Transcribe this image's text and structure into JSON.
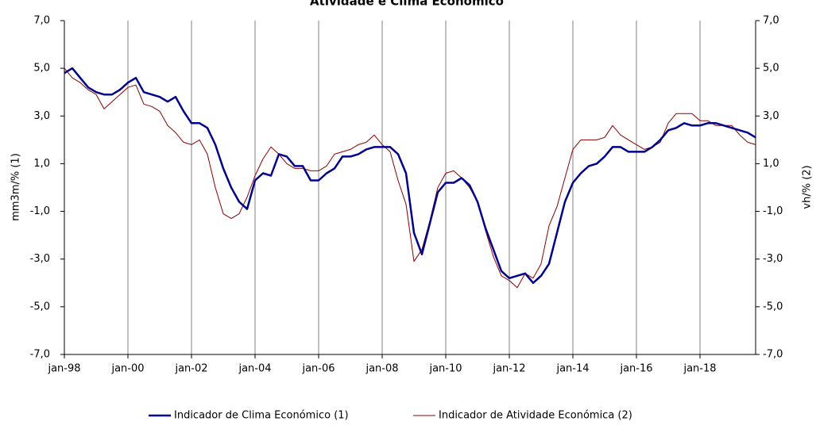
{
  "chart_data": {
    "type": "line",
    "title": "Atividade e Clima Económico",
    "y_label": "mm3m/% (1)",
    "y2_label": "vh/% (2)",
    "categories": [
      "jan-98",
      null,
      null,
      null,
      null,
      null,
      null,
      null,
      "jan-00",
      null,
      null,
      null,
      null,
      null,
      null,
      null,
      "jan-02",
      null,
      null,
      null,
      null,
      null,
      null,
      null,
      "jan-04",
      null,
      null,
      null,
      null,
      null,
      null,
      null,
      "jan-06",
      null,
      null,
      null,
      null,
      null,
      null,
      null,
      "jan-08",
      null,
      null,
      null,
      null,
      null,
      null,
      null,
      "jan-10",
      null,
      null,
      null,
      null,
      null,
      null,
      null,
      "jan-12",
      null,
      null,
      null,
      null,
      null,
      null,
      null,
      "jan-14",
      null,
      null,
      null,
      null,
      null,
      null,
      null,
      "jan-16",
      null,
      null,
      null,
      null,
      null,
      null,
      null,
      "jan-18",
      null,
      null,
      null,
      null,
      null,
      null,
      null
    ],
    "series": [
      {
        "name": "Indicador de Clima Económico (1)",
        "color": "#00008b",
        "width": 2.5,
        "values": [
          4.8,
          5.0,
          4.6,
          4.2,
          4.0,
          3.9,
          3.9,
          4.1,
          4.4,
          4.6,
          4.0,
          3.9,
          3.8,
          3.6,
          3.8,
          3.2,
          2.7,
          2.7,
          2.5,
          1.8,
          0.8,
          0.0,
          -0.6,
          -0.9,
          0.3,
          0.6,
          0.5,
          1.4,
          1.3,
          0.9,
          0.9,
          0.3,
          0.3,
          0.6,
          0.8,
          1.3,
          1.3,
          1.4,
          1.6,
          1.7,
          1.7,
          1.7,
          1.4,
          0.6,
          -1.9,
          -2.8,
          -1.5,
          -0.2,
          0.2,
          0.2,
          0.4,
          0.1,
          -0.6,
          -1.7,
          -2.6,
          -3.5,
          -3.8,
          -3.7,
          -3.6,
          -4.0,
          -3.7,
          -3.2,
          -1.9,
          -0.6,
          0.2,
          0.6,
          0.9,
          1.0,
          1.3,
          1.7,
          1.7,
          1.5,
          1.5,
          1.5,
          1.7,
          2.0,
          2.4,
          2.5,
          2.7,
          2.6,
          2.6,
          2.7,
          2.7,
          2.6,
          2.5,
          2.4,
          2.3,
          2.1
        ]
      },
      {
        "name": "Indicador de Atividade Económica (2)",
        "color": "#8b0000",
        "width": 1,
        "axis": "y2",
        "values": [
          5.0,
          4.6,
          4.4,
          4.1,
          3.9,
          3.3,
          3.6,
          3.9,
          4.2,
          4.3,
          3.5,
          3.4,
          3.2,
          2.6,
          2.3,
          1.9,
          1.8,
          2.0,
          1.4,
          0.0,
          -1.1,
          -1.3,
          -1.1,
          -0.4,
          0.5,
          1.2,
          1.7,
          1.4,
          1.0,
          0.8,
          0.8,
          0.7,
          0.7,
          0.9,
          1.4,
          1.5,
          1.6,
          1.8,
          1.9,
          2.2,
          1.8,
          1.5,
          0.3,
          -0.7,
          -3.1,
          -2.6,
          -1.4,
          0.0,
          0.6,
          0.7,
          0.4,
          0.0,
          -0.6,
          -1.8,
          -2.9,
          -3.7,
          -3.9,
          -4.2,
          -3.6,
          -3.8,
          -3.2,
          -1.6,
          -0.8,
          0.4,
          1.6,
          2.0,
          2.0,
          2.0,
          2.1,
          2.6,
          2.2,
          2.0,
          1.8,
          1.6,
          1.7,
          1.9,
          2.7,
          3.1,
          3.1,
          3.1,
          2.8,
          2.8,
          2.6,
          2.6,
          2.6,
          2.2,
          1.9,
          1.8
        ]
      }
    ],
    "ylim": [
      -7,
      7
    ],
    "yticks": [
      {
        "value": 7,
        "label": "7,0"
      },
      {
        "value": 5,
        "label": "5,0"
      },
      {
        "value": 3,
        "label": "3,0"
      },
      {
        "value": 1,
        "label": "1,0"
      },
      {
        "value": -1,
        "label": "-1,0"
      },
      {
        "value": -3,
        "label": "-3,0"
      },
      {
        "value": -5,
        "label": "-5,0"
      },
      {
        "value": -7,
        "label": "-7,0"
      }
    ],
    "y2lim": [
      -7,
      7
    ],
    "y2ticks": [
      {
        "value": 7,
        "label": "7,0"
      },
      {
        "value": 5,
        "label": "5,0"
      },
      {
        "value": 3,
        "label": "3,0"
      },
      {
        "value": 1,
        "label": "1,0"
      },
      {
        "value": -1,
        "label": "-1,0"
      },
      {
        "value": -3,
        "label": "-3,0"
      },
      {
        "value": -5,
        "label": "-5,0"
      },
      {
        "value": -7,
        "label": "-7,0"
      }
    ],
    "grid": "x",
    "legend": "bottom"
  }
}
